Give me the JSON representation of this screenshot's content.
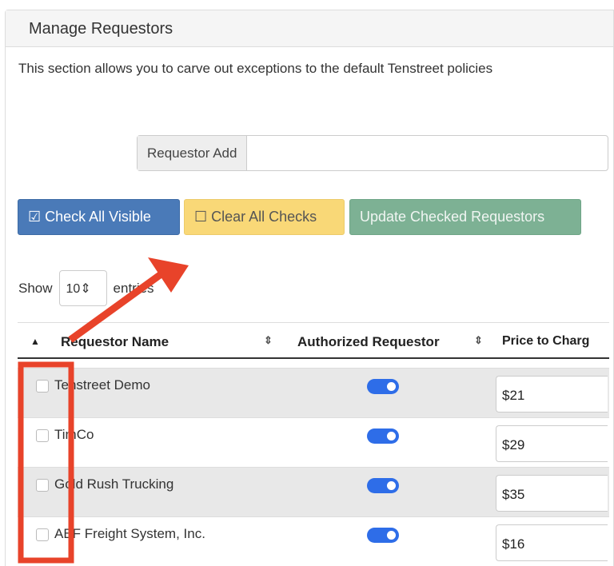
{
  "panel": {
    "title": "Manage Requestors",
    "description": "This section allows you to carve out exceptions to the default Tenstreet policies"
  },
  "requestor_add": {
    "label": "Requestor Add",
    "value": ""
  },
  "buttons": {
    "check_all": "☑ Check All Visible",
    "clear_all": "☐ Clear All Checks",
    "update": "Update Checked Requestors"
  },
  "length": {
    "show": "Show",
    "value": "10",
    "entries": "entries"
  },
  "table": {
    "headers": {
      "name": "Requestor Name",
      "authorized": "Authorized Requestor",
      "price": "Price to Charg"
    },
    "rows": [
      {
        "name": "Tenstreet Demo",
        "authorized": true,
        "price": "$21"
      },
      {
        "name": "TimCo",
        "authorized": true,
        "price": "$29"
      },
      {
        "name": "Gold Rush Trucking",
        "authorized": true,
        "price": "$35"
      },
      {
        "name": "ABF Freight System, Inc.",
        "authorized": true,
        "price": "$16"
      }
    ]
  },
  "colors": {
    "annotation": "#e8432a",
    "toggle": "#2e6de8",
    "primary": "#4a7ab8",
    "warning": "#f9d877",
    "success": "#7db194"
  }
}
